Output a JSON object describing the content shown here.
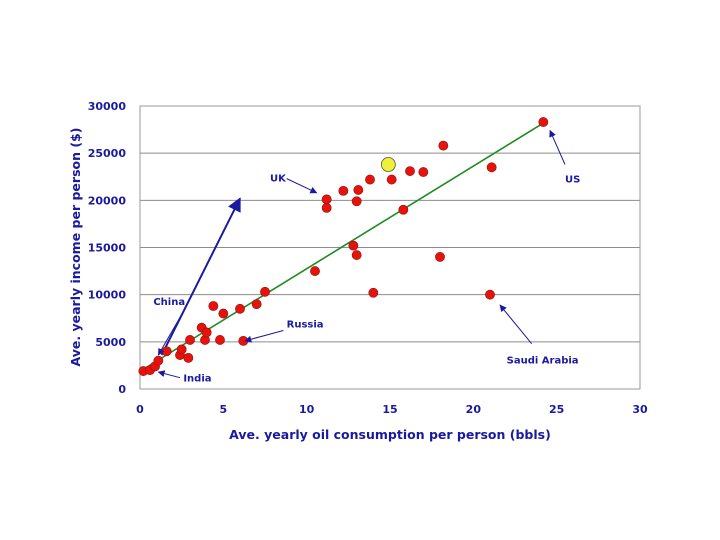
{
  "chart_data": {
    "type": "scatter",
    "title": "",
    "xlabel": "Ave. yearly oil consumption per person (bbls)",
    "ylabel": "Ave. yearly income per person ($)",
    "xlim": [
      0,
      30
    ],
    "ylim": [
      0,
      30000
    ],
    "x_ticks": [
      "0",
      "5",
      "10",
      "15",
      "20",
      "25",
      "30"
    ],
    "y_ticks": [
      "0",
      "5000",
      "10000",
      "15000",
      "20000",
      "25000",
      "30000"
    ],
    "grid": "horizontal",
    "colors": {
      "points": "#e8120c",
      "highlight": "#f0f03a",
      "trend": "#1f8a1f",
      "arrows": "#1a1aa0",
      "text": "#1a1aa0"
    },
    "points": [
      {
        "x": 0.2,
        "y": 1900
      },
      {
        "x": 0.6,
        "y": 2000
      },
      {
        "x": 0.9,
        "y": 2400
      },
      {
        "x": 1.1,
        "y": 3000
      },
      {
        "x": 1.6,
        "y": 4000
      },
      {
        "x": 2.4,
        "y": 3600
      },
      {
        "x": 2.5,
        "y": 4200
      },
      {
        "x": 2.9,
        "y": 3300
      },
      {
        "x": 3.0,
        "y": 5200
      },
      {
        "x": 3.7,
        "y": 6500
      },
      {
        "x": 3.9,
        "y": 5200
      },
      {
        "x": 4.0,
        "y": 6000
      },
      {
        "x": 4.4,
        "y": 8800
      },
      {
        "x": 4.8,
        "y": 5200
      },
      {
        "x": 5.0,
        "y": 8000
      },
      {
        "x": 6.0,
        "y": 8500
      },
      {
        "x": 6.2,
        "y": 5100
      },
      {
        "x": 7.0,
        "y": 9000
      },
      {
        "x": 7.5,
        "y": 10300
      },
      {
        "x": 10.5,
        "y": 12500
      },
      {
        "x": 11.2,
        "y": 20100
      },
      {
        "x": 11.2,
        "y": 19200
      },
      {
        "x": 12.2,
        "y": 21000
      },
      {
        "x": 12.8,
        "y": 15200
      },
      {
        "x": 13.0,
        "y": 19900
      },
      {
        "x": 13.0,
        "y": 14200
      },
      {
        "x": 13.1,
        "y": 21100
      },
      {
        "x": 13.8,
        "y": 22200
      },
      {
        "x": 14.0,
        "y": 10200
      },
      {
        "x": 15.1,
        "y": 22200
      },
      {
        "x": 15.8,
        "y": 19000
      },
      {
        "x": 16.2,
        "y": 23100
      },
      {
        "x": 17.0,
        "y": 23000
      },
      {
        "x": 18.0,
        "y": 14000
      },
      {
        "x": 18.2,
        "y": 25800
      },
      {
        "x": 21.0,
        "y": 10000
      },
      {
        "x": 21.1,
        "y": 23500
      },
      {
        "x": 24.2,
        "y": 28300
      }
    ],
    "highlight_point": {
      "x": 14.9,
      "y": 23800
    },
    "trendline": {
      "from": {
        "x": 0.3,
        "y": 2200
      },
      "to": {
        "x": 24.3,
        "y": 28300
      }
    },
    "vector_arrow": {
      "from": {
        "x": 1.3,
        "y": 3600
      },
      "to": {
        "x": 6.0,
        "y": 20200
      }
    },
    "annotations": [
      {
        "label": "China",
        "text_at": {
          "x": 0.8,
          "y": 8900
        },
        "arrow_from": {
          "x": 2.6,
          "y": 8200
        },
        "arrow_to": {
          "x": 1.1,
          "y": 3600
        }
      },
      {
        "label": "India",
        "text_at": {
          "x": 2.6,
          "y": 800
        },
        "arrow_from": {
          "x": 2.4,
          "y": 1200
        },
        "arrow_to": {
          "x": 1.1,
          "y": 1800
        }
      },
      {
        "label": "Russia",
        "text_at": {
          "x": 8.8,
          "y": 6500
        },
        "arrow_from": {
          "x": 8.6,
          "y": 6200
        },
        "arrow_to": {
          "x": 6.3,
          "y": 5100
        }
      },
      {
        "label": "UK",
        "text_at": {
          "x": 7.8,
          "y": 22000
        },
        "arrow_from": {
          "x": 8.8,
          "y": 22300
        },
        "arrow_to": {
          "x": 10.6,
          "y": 20800
        }
      },
      {
        "label": "US",
        "text_at": {
          "x": 25.5,
          "y": 21900
        },
        "arrow_from": {
          "x": 25.5,
          "y": 23800
        },
        "arrow_to": {
          "x": 24.6,
          "y": 27400
        }
      },
      {
        "label": "Saudi Arabia",
        "text_at": {
          "x": 22.0,
          "y": 2700
        },
        "arrow_from": {
          "x": 23.5,
          "y": 4800
        },
        "arrow_to": {
          "x": 21.6,
          "y": 8900
        }
      }
    ]
  }
}
